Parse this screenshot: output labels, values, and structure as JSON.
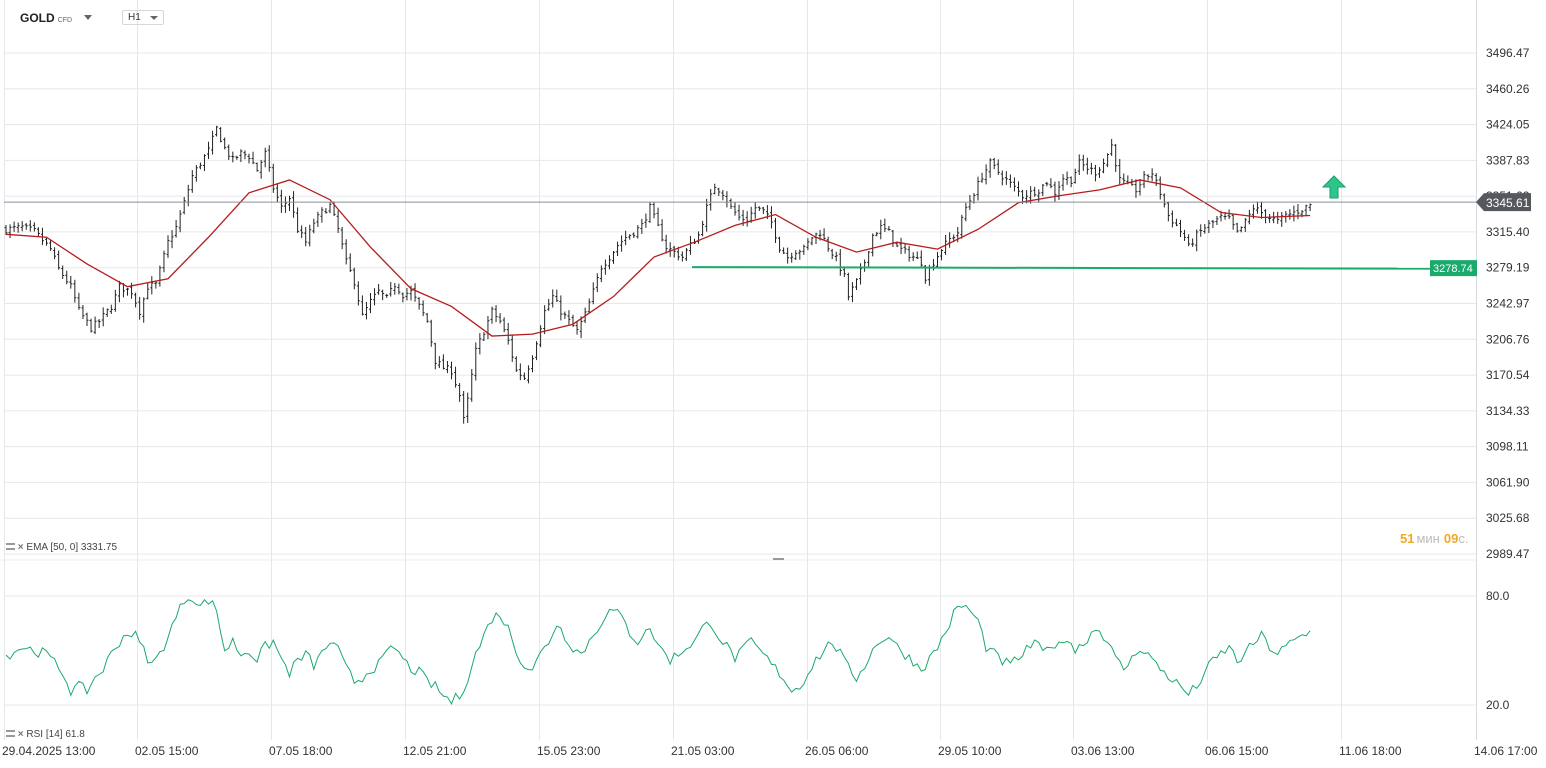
{
  "header": {
    "symbol": "GOLD",
    "symbol_tag": "CFD",
    "timeframe": "H1"
  },
  "countdown": {
    "minutes": "51",
    "min_label": "мин",
    "seconds": "09",
    "sec_label": "с."
  },
  "indicators": {
    "ema": {
      "label": "EMA",
      "params": "[50, 0]",
      "value": "3331.75"
    },
    "rsi": {
      "label": "RSI",
      "params": "[14]",
      "value": "61.8"
    }
  },
  "colors": {
    "price": "#222222",
    "ema": "#b71c1c",
    "rsi": "#1aaa6b",
    "level": "#1aaa6b",
    "grid": "#e4e8ec",
    "current_tag": "#55595e"
  },
  "chart_data": [
    {
      "type": "ohlc-bars",
      "x_axis_labels": [
        "29.04.2025 13:00",
        "02.05 15:00",
        "07.05 18:00",
        "12.05 21:00",
        "15.05 23:00",
        "21.05 03:00",
        "26.05 06:00",
        "29.05 10:00",
        "03.06 13:00",
        "06.06 15:00",
        "11.06 18:00",
        "14.06 17:00"
      ],
      "y_axis_labels": [
        "3496.47",
        "3460.26",
        "3424.05",
        "3387.83",
        "3351.62",
        "3315.40",
        "3279.19",
        "3242.97",
        "3206.76",
        "3170.54",
        "3134.33",
        "3098.11",
        "3061.90",
        "3025.68",
        "2989.47"
      ],
      "ylim": [
        2989.47,
        3496.47
      ],
      "current_price": "3345.61",
      "horizontal_level": "3278.74",
      "close_path": [
        [
          0,
          3318
        ],
        [
          4,
          3320
        ],
        [
          7,
          3316
        ],
        [
          11,
          3298
        ],
        [
          13,
          3278
        ],
        [
          16,
          3260
        ],
        [
          18,
          3236
        ],
        [
          21,
          3218
        ],
        [
          23,
          3225
        ],
        [
          26,
          3240
        ],
        [
          28,
          3260
        ],
        [
          31,
          3255
        ],
        [
          33,
          3235
        ],
        [
          35,
          3260
        ],
        [
          37,
          3262
        ],
        [
          40,
          3305
        ],
        [
          42,
          3320
        ],
        [
          44,
          3345
        ],
        [
          46,
          3372
        ],
        [
          48,
          3385
        ],
        [
          50,
          3398
        ],
        [
          52,
          3420
        ],
        [
          54,
          3400
        ],
        [
          56,
          3388
        ],
        [
          58,
          3395
        ],
        [
          60,
          3392
        ],
        [
          62,
          3378
        ],
        [
          64,
          3395
        ],
        [
          66,
          3360
        ],
        [
          68,
          3340
        ],
        [
          70,
          3350
        ],
        [
          72,
          3318
        ],
        [
          74,
          3305
        ],
        [
          76,
          3325
        ],
        [
          78,
          3335
        ],
        [
          80,
          3342
        ],
        [
          82,
          3318
        ],
        [
          84,
          3285
        ],
        [
          86,
          3265
        ],
        [
          88,
          3230
        ],
        [
          90,
          3245
        ],
        [
          92,
          3255
        ],
        [
          94,
          3248
        ],
        [
          96,
          3262
        ],
        [
          98,
          3252
        ],
        [
          100,
          3255
        ],
        [
          102,
          3240
        ],
        [
          104,
          3225
        ],
        [
          106,
          3185
        ],
        [
          108,
          3178
        ],
        [
          110,
          3175
        ],
        [
          112,
          3150
        ],
        [
          113,
          3125
        ],
        [
          114,
          3145
        ],
        [
          116,
          3195
        ],
        [
          118,
          3215
        ],
        [
          120,
          3235
        ],
        [
          122,
          3225
        ],
        [
          124,
          3205
        ],
        [
          126,
          3175
        ],
        [
          128,
          3168
        ],
        [
          130,
          3190
        ],
        [
          131,
          3205
        ],
        [
          133,
          3235
        ],
        [
          135,
          3250
        ],
        [
          137,
          3235
        ],
        [
          139,
          3225
        ],
        [
          141,
          3215
        ],
        [
          143,
          3232
        ],
        [
          145,
          3255
        ],
        [
          147,
          3280
        ],
        [
          149,
          3290
        ],
        [
          151,
          3302
        ],
        [
          153,
          3310
        ],
        [
          155,
          3315
        ],
        [
          157,
          3322
        ],
        [
          159,
          3340
        ],
        [
          161,
          3320
        ],
        [
          163,
          3300
        ],
        [
          165,
          3295
        ],
        [
          167,
          3290
        ],
        [
          169,
          3302
        ],
        [
          171,
          3312
        ],
        [
          173,
          3340
        ],
        [
          175,
          3362
        ],
        [
          177,
          3355
        ],
        [
          179,
          3340
        ],
        [
          181,
          3330
        ],
        [
          183,
          3328
        ],
        [
          185,
          3340
        ],
        [
          187,
          3336
        ],
        [
          189,
          3325
        ],
        [
          191,
          3300
        ],
        [
          193,
          3290
        ],
        [
          195,
          3296
        ],
        [
          197,
          3298
        ],
        [
          199,
          3310
        ],
        [
          201,
          3315
        ],
        [
          203,
          3300
        ],
        [
          205,
          3288
        ],
        [
          207,
          3270
        ],
        [
          208,
          3250
        ],
        [
          210,
          3265
        ],
        [
          212,
          3285
        ],
        [
          214,
          3312
        ],
        [
          216,
          3320
        ],
        [
          218,
          3315
        ],
        [
          220,
          3300
        ],
        [
          222,
          3295
        ],
        [
          224,
          3290
        ],
        [
          226,
          3285
        ],
        [
          227,
          3270
        ],
        [
          229,
          3285
        ],
        [
          231,
          3298
        ],
        [
          233,
          3308
        ],
        [
          235,
          3315
        ],
        [
          237,
          3340
        ],
        [
          239,
          3355
        ],
        [
          241,
          3372
        ],
        [
          243,
          3385
        ],
        [
          245,
          3376
        ],
        [
          247,
          3368
        ],
        [
          249,
          3360
        ],
        [
          251,
          3352
        ],
        [
          253,
          3355
        ],
        [
          255,
          3358
        ],
        [
          257,
          3366
        ],
        [
          259,
          3355
        ],
        [
          261,
          3370
        ],
        [
          263,
          3368
        ],
        [
          265,
          3385
        ],
        [
          267,
          3380
        ],
        [
          269,
          3376
        ],
        [
          271,
          3385
        ],
        [
          273,
          3403
        ],
        [
          275,
          3368
        ],
        [
          277,
          3362
        ],
        [
          279,
          3358
        ],
        [
          281,
          3370
        ],
        [
          283,
          3375
        ],
        [
          285,
          3355
        ],
        [
          287,
          3332
        ],
        [
          289,
          3322
        ],
        [
          291,
          3310
        ],
        [
          292,
          3300
        ],
        [
          294,
          3312
        ],
        [
          296,
          3320
        ],
        [
          298,
          3325
        ],
        [
          300,
          3330
        ],
        [
          302,
          3328
        ],
        [
          304,
          3314
        ],
        [
          306,
          3325
        ],
        [
          308,
          3340
        ],
        [
          310,
          3335
        ],
        [
          312,
          3330
        ],
        [
          314,
          3326
        ],
        [
          316,
          3332
        ],
        [
          318,
          3335
        ],
        [
          320,
          3338
        ],
        [
          322,
          3343
        ]
      ],
      "ema50_path": [
        [
          0,
          3313
        ],
        [
          10,
          3310
        ],
        [
          20,
          3283
        ],
        [
          30,
          3260
        ],
        [
          40,
          3268
        ],
        [
          50,
          3310
        ],
        [
          60,
          3355
        ],
        [
          70,
          3368
        ],
        [
          80,
          3348
        ],
        [
          90,
          3300
        ],
        [
          100,
          3258
        ],
        [
          110,
          3240
        ],
        [
          120,
          3210
        ],
        [
          130,
          3212
        ],
        [
          140,
          3222
        ],
        [
          150,
          3250
        ],
        [
          160,
          3290
        ],
        [
          170,
          3305
        ],
        [
          180,
          3322
        ],
        [
          190,
          3333
        ],
        [
          200,
          3310
        ],
        [
          210,
          3295
        ],
        [
          220,
          3305
        ],
        [
          230,
          3298
        ],
        [
          240,
          3318
        ],
        [
          250,
          3345
        ],
        [
          260,
          3352
        ],
        [
          270,
          3358
        ],
        [
          280,
          3368
        ],
        [
          290,
          3360
        ],
        [
          300,
          3335
        ],
        [
          310,
          3330
        ],
        [
          322,
          3332
        ]
      ]
    },
    {
      "type": "line",
      "series": [
        {
          "name": "RSI",
          "values": []
        }
      ],
      "y_axis_labels": [
        "80.0",
        "20.0"
      ],
      "ylim": [
        20.0,
        80.0
      ],
      "rsi_path": [
        [
          0,
          47
        ],
        [
          4,
          52
        ],
        [
          7,
          50
        ],
        [
          10,
          48
        ],
        [
          12,
          43
        ],
        [
          14,
          38
        ],
        [
          16,
          28
        ],
        [
          18,
          30
        ],
        [
          20,
          28
        ],
        [
          22,
          35
        ],
        [
          24,
          40
        ],
        [
          26,
          48
        ],
        [
          28,
          55
        ],
        [
          30,
          60
        ],
        [
          32,
          58
        ],
        [
          34,
          50
        ],
        [
          36,
          42
        ],
        [
          38,
          48
        ],
        [
          40,
          58
        ],
        [
          42,
          68
        ],
        [
          44,
          78
        ],
        [
          46,
          80
        ],
        [
          48,
          74
        ],
        [
          50,
          78
        ],
        [
          52,
          72
        ],
        [
          54,
          50
        ],
        [
          56,
          55
        ],
        [
          58,
          48
        ],
        [
          60,
          50
        ],
        [
          62,
          45
        ],
        [
          64,
          52
        ],
        [
          66,
          55
        ],
        [
          68,
          45
        ],
        [
          70,
          38
        ],
        [
          72,
          44
        ],
        [
          74,
          48
        ],
        [
          76,
          42
        ],
        [
          78,
          48
        ],
        [
          80,
          55
        ],
        [
          82,
          50
        ],
        [
          84,
          40
        ],
        [
          86,
          33
        ],
        [
          88,
          35
        ],
        [
          90,
          40
        ],
        [
          92,
          42
        ],
        [
          94,
          48
        ],
        [
          96,
          52
        ],
        [
          98,
          45
        ],
        [
          100,
          40
        ],
        [
          102,
          38
        ],
        [
          104,
          33
        ],
        [
          106,
          30
        ],
        [
          108,
          25
        ],
        [
          110,
          22
        ],
        [
          112,
          25
        ],
        [
          114,
          35
        ],
        [
          116,
          48
        ],
        [
          118,
          58
        ],
        [
          120,
          68
        ],
        [
          122,
          70
        ],
        [
          124,
          62
        ],
        [
          126,
          50
        ],
        [
          128,
          42
        ],
        [
          130,
          40
        ],
        [
          132,
          48
        ],
        [
          134,
          55
        ],
        [
          136,
          65
        ],
        [
          138,
          58
        ],
        [
          140,
          52
        ],
        [
          142,
          48
        ],
        [
          144,
          55
        ],
        [
          146,
          62
        ],
        [
          148,
          70
        ],
        [
          150,
          72
        ],
        [
          152,
          68
        ],
        [
          154,
          60
        ],
        [
          156,
          55
        ],
        [
          158,
          62
        ],
        [
          160,
          58
        ],
        [
          162,
          50
        ],
        [
          164,
          45
        ],
        [
          166,
          48
        ],
        [
          168,
          52
        ],
        [
          170,
          55
        ],
        [
          172,
          62
        ],
        [
          174,
          66
        ],
        [
          176,
          58
        ],
        [
          178,
          52
        ],
        [
          180,
          46
        ],
        [
          182,
          50
        ],
        [
          184,
          55
        ],
        [
          186,
          50
        ],
        [
          188,
          45
        ],
        [
          190,
          40
        ],
        [
          192,
          35
        ],
        [
          194,
          28
        ],
        [
          196,
          30
        ],
        [
          198,
          38
        ],
        [
          200,
          45
        ],
        [
          202,
          50
        ],
        [
          204,
          55
        ],
        [
          206,
          48
        ],
        [
          208,
          40
        ],
        [
          210,
          35
        ],
        [
          212,
          42
        ],
        [
          214,
          50
        ],
        [
          216,
          56
        ],
        [
          218,
          58
        ],
        [
          220,
          52
        ],
        [
          222,
          48
        ],
        [
          224,
          44
        ],
        [
          226,
          40
        ],
        [
          228,
          45
        ],
        [
          230,
          52
        ],
        [
          232,
          60
        ],
        [
          234,
          70
        ],
        [
          236,
          75
        ],
        [
          238,
          72
        ],
        [
          240,
          66
        ],
        [
          242,
          52
        ],
        [
          244,
          48
        ],
        [
          246,
          44
        ],
        [
          248,
          42
        ],
        [
          250,
          46
        ],
        [
          252,
          50
        ],
        [
          254,
          55
        ],
        [
          256,
          48
        ],
        [
          258,
          54
        ],
        [
          260,
          52
        ],
        [
          262,
          58
        ],
        [
          264,
          50
        ],
        [
          266,
          54
        ],
        [
          268,
          60
        ],
        [
          270,
          62
        ],
        [
          272,
          55
        ],
        [
          274,
          45
        ],
        [
          276,
          40
        ],
        [
          278,
          45
        ],
        [
          280,
          52
        ],
        [
          282,
          48
        ],
        [
          284,
          42
        ],
        [
          286,
          38
        ],
        [
          288,
          34
        ],
        [
          290,
          30
        ],
        [
          292,
          26
        ],
        [
          294,
          30
        ],
        [
          296,
          38
        ],
        [
          298,
          44
        ],
        [
          300,
          48
        ],
        [
          302,
          52
        ],
        [
          304,
          44
        ],
        [
          306,
          48
        ],
        [
          308,
          54
        ],
        [
          310,
          58
        ],
        [
          312,
          52
        ],
        [
          314,
          48
        ],
        [
          316,
          52
        ],
        [
          318,
          55
        ],
        [
          320,
          58
        ],
        [
          322,
          60
        ]
      ]
    }
  ]
}
